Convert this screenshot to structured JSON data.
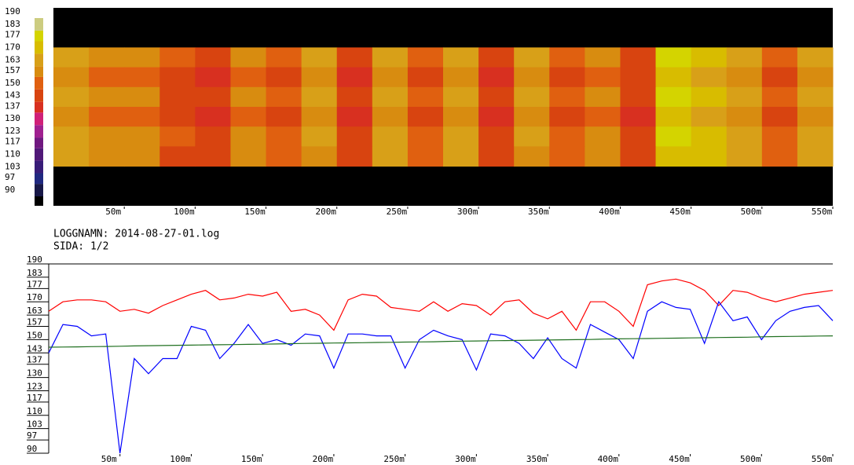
{
  "header": {
    "log_name": "LOGGNAMN: 2014-08-27-01.log",
    "page": "SIDA: 1/2"
  },
  "chart_data": [
    {
      "type": "heatmap",
      "xlim": [
        0,
        550
      ],
      "x": [
        0,
        25,
        50,
        75,
        100,
        125,
        150,
        175,
        200,
        225,
        250,
        275,
        300,
        325,
        350,
        375,
        400,
        425,
        450,
        475,
        500,
        525,
        550
      ],
      "xticks": [
        {
          "value": 50,
          "label": "50m"
        },
        {
          "value": 100,
          "label": "100m"
        },
        {
          "value": 150,
          "label": "150m"
        },
        {
          "value": 200,
          "label": "200m"
        },
        {
          "value": 250,
          "label": "250m"
        },
        {
          "value": 300,
          "label": "300m"
        },
        {
          "value": 350,
          "label": "350m"
        },
        {
          "value": 400,
          "label": "400m"
        },
        {
          "value": 450,
          "label": "450m"
        },
        {
          "value": 500,
          "label": "500m"
        },
        {
          "value": 550,
          "label": "550m"
        }
      ],
      "colorbar": {
        "ticks": [
          90,
          97,
          103,
          110,
          117,
          123,
          130,
          137,
          143,
          150,
          157,
          163,
          170,
          177,
          183,
          190
        ],
        "colors": [
          "#181848",
          "#202880",
          "#381c78",
          "#501878",
          "#701880",
          "#a02090",
          "#d02078",
          "#d83020",
          "#d84410",
          "#e06010",
          "#d88c10",
          "#d8a018",
          "#d8bc00",
          "#d4d400",
          "#cccc80"
        ],
        "under_color": "#000000"
      },
      "z": [
        [
          null,
          null,
          null,
          null,
          null,
          null,
          null,
          null,
          null,
          null,
          null,
          null,
          null,
          null,
          null,
          null,
          null,
          null,
          null,
          null,
          null,
          null
        ],
        [
          null,
          null,
          null,
          null,
          null,
          null,
          null,
          null,
          null,
          null,
          null,
          null,
          null,
          null,
          null,
          null,
          null,
          null,
          null,
          null,
          null,
          null
        ],
        [
          165,
          162,
          160,
          150,
          147,
          162,
          152,
          164,
          148,
          165,
          152,
          166,
          148,
          164,
          152,
          160,
          149,
          178,
          174,
          168,
          154,
          168
        ],
        [
          159,
          156,
          154,
          144,
          141,
          156,
          146,
          158,
          142,
          159,
          146,
          160,
          142,
          158,
          146,
          154,
          143,
          172,
          168,
          162,
          148,
          162
        ],
        [
          164,
          161,
          159,
          149,
          146,
          161,
          151,
          163,
          147,
          164,
          151,
          165,
          147,
          163,
          151,
          159,
          148,
          177,
          173,
          167,
          153,
          167
        ],
        [
          158,
          155,
          153,
          143,
          140,
          155,
          145,
          157,
          141,
          158,
          145,
          159,
          141,
          157,
          145,
          153,
          142,
          171,
          167,
          161,
          147,
          161
        ],
        [
          165,
          162,
          160,
          150,
          147,
          162,
          152,
          164,
          148,
          165,
          152,
          166,
          148,
          164,
          152,
          160,
          149,
          178,
          174,
          168,
          154,
          168
        ],
        [
          163,
          160,
          158,
          148,
          145,
          160,
          150,
          162,
          146,
          163,
          150,
          164,
          146,
          162,
          150,
          158,
          147,
          176,
          172,
          166,
          152,
          166
        ],
        [
          null,
          null,
          null,
          null,
          null,
          null,
          null,
          null,
          null,
          null,
          null,
          null,
          null,
          null,
          null,
          null,
          null,
          null,
          null,
          null,
          null,
          null
        ],
        [
          null,
          null,
          null,
          null,
          null,
          null,
          null,
          null,
          null,
          null,
          null,
          null,
          null,
          null,
          null,
          null,
          null,
          null,
          null,
          null,
          null,
          null
        ]
      ]
    },
    {
      "type": "line",
      "xlim": [
        0,
        550
      ],
      "ylim": [
        90,
        190
      ],
      "yticks": [
        90,
        97,
        103,
        110,
        117,
        123,
        130,
        137,
        143,
        150,
        157,
        163,
        170,
        177,
        183,
        190
      ],
      "xticks": [
        {
          "value": 50,
          "label": "50m"
        },
        {
          "value": 100,
          "label": "100m"
        },
        {
          "value": 150,
          "label": "150m"
        },
        {
          "value": 200,
          "label": "200m"
        },
        {
          "value": 250,
          "label": "250m"
        },
        {
          "value": 300,
          "label": "300m"
        },
        {
          "value": 350,
          "label": "350m"
        },
        {
          "value": 400,
          "label": "400m"
        },
        {
          "value": 450,
          "label": "450m"
        },
        {
          "value": 500,
          "label": "500m"
        },
        {
          "value": 550,
          "label": "550m"
        }
      ],
      "x": [
        0,
        10,
        20,
        30,
        40,
        50,
        60,
        70,
        80,
        90,
        100,
        110,
        120,
        130,
        140,
        150,
        160,
        170,
        180,
        190,
        200,
        210,
        220,
        230,
        240,
        250,
        260,
        270,
        280,
        290,
        300,
        310,
        320,
        330,
        340,
        350,
        360,
        370,
        380,
        390,
        400,
        410,
        420,
        430,
        440,
        450,
        460,
        470,
        480,
        490,
        500,
        510,
        520,
        530,
        540,
        550
      ],
      "series": [
        {
          "color": "#ff0000",
          "values": [
            165,
            170,
            171,
            171,
            170,
            165,
            166,
            164,
            168,
            171,
            174,
            176,
            171,
            172,
            174,
            173,
            175,
            165,
            166,
            163,
            155,
            171,
            174,
            173,
            167,
            166,
            165,
            170,
            165,
            169,
            168,
            163,
            170,
            171,
            164,
            161,
            165,
            155,
            170,
            170,
            165,
            157,
            179,
            181,
            182,
            180,
            176,
            168,
            176,
            175,
            172,
            170,
            172,
            174,
            175,
            176
          ]
        },
        {
          "color": "#0000ff",
          "values": [
            143,
            158,
            157,
            152,
            153,
            90,
            140,
            132,
            140,
            140,
            157,
            155,
            140,
            148,
            158,
            148,
            150,
            147,
            153,
            152,
            135,
            153,
            153,
            152,
            152,
            135,
            150,
            155,
            152,
            150,
            134,
            153,
            152,
            148,
            140,
            151,
            140,
            135,
            158,
            154,
            150,
            140,
            165,
            170,
            167,
            166,
            148,
            170,
            160,
            162,
            150,
            160,
            165,
            167,
            168,
            160
          ]
        },
        {
          "color": "#207020",
          "values": [
            146.0,
            146.1,
            146.2,
            146.3,
            146.4,
            146.5,
            146.7,
            146.8,
            146.9,
            147.0,
            147.1,
            147.2,
            147.3,
            147.4,
            147.5,
            147.6,
            147.7,
            147.9,
            148.0,
            148.1,
            148.2,
            148.3,
            148.4,
            148.5,
            148.6,
            148.7,
            148.8,
            148.9,
            149.1,
            149.2,
            149.3,
            149.4,
            149.5,
            149.6,
            149.7,
            149.8,
            149.9,
            150.0,
            150.1,
            150.3,
            150.4,
            150.5,
            150.6,
            150.7,
            150.8,
            150.9,
            151.0,
            151.1,
            151.2,
            151.3,
            151.5,
            151.6,
            151.7,
            151.8,
            151.9,
            152.0
          ]
        }
      ]
    }
  ]
}
